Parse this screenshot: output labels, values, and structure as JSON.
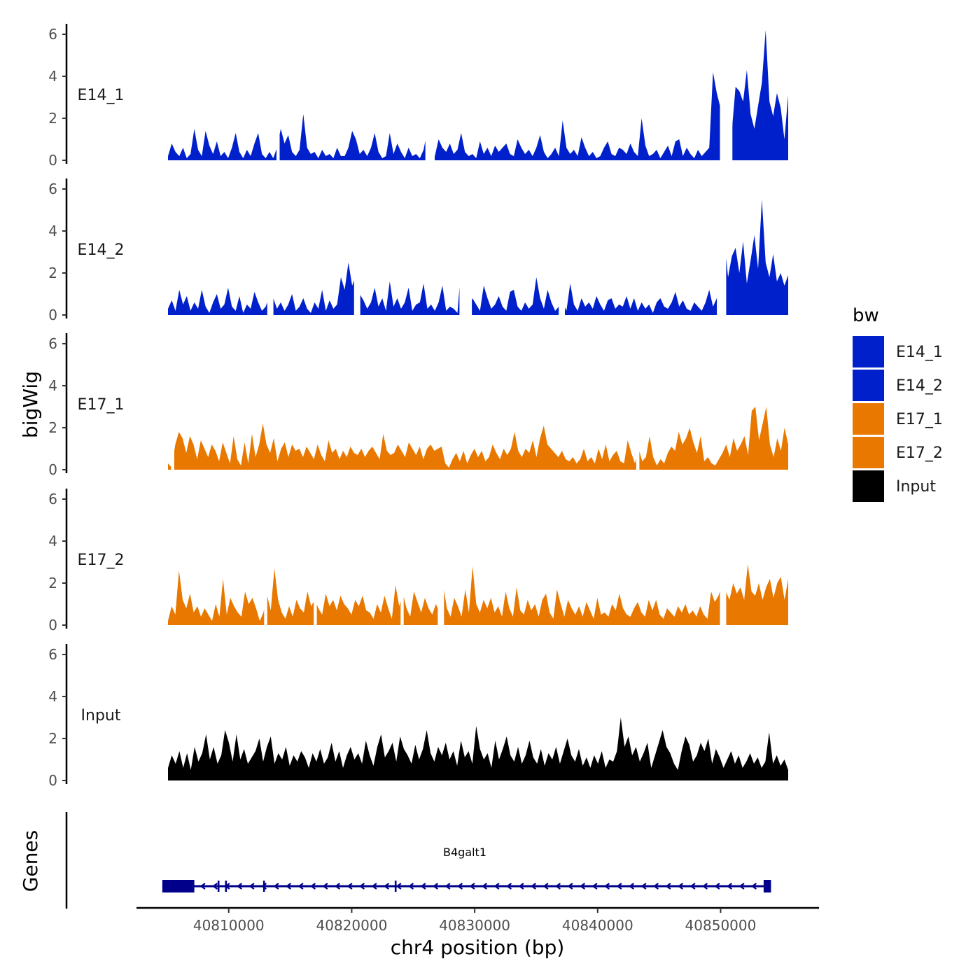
{
  "chart_data": {
    "type": "area",
    "ylabel": "bigWig",
    "xlabel": "chr4 position (bp)",
    "genes_label": "Genes",
    "xlim": [
      40802500,
      40858000
    ],
    "ylim": [
      0,
      6.5
    ],
    "yticks": [
      "0",
      "2",
      "4",
      "6"
    ],
    "xticks": [
      "40810000",
      "40820000",
      "40830000",
      "40840000",
      "40850000"
    ],
    "xtick_values": [
      40810000,
      40820000,
      40830000,
      40840000,
      40850000
    ],
    "region_start": 40804600,
    "region_end": 40855600,
    "legend": {
      "title": "bw",
      "items": [
        {
          "label": "E14_1",
          "color": "#0020cc"
        },
        {
          "label": "E14_2",
          "color": "#0020cc"
        },
        {
          "label": "E17_1",
          "color": "#e87800"
        },
        {
          "label": "E17_2",
          "color": "#e87800"
        },
        {
          "label": "Input",
          "color": "#000000"
        }
      ]
    },
    "series": [
      {
        "name": "E14_1",
        "color": "#0020cc",
        "gaps": [
          [
            0.175,
            0.18
          ],
          [
            0.31,
            0.31
          ],
          [
            0.415,
            0.43
          ],
          [
            0.89,
            0.91
          ]
        ],
        "values": [
          0.2,
          0.8,
          0.4,
          0.2,
          0.6,
          0.1,
          0.3,
          1.5,
          0.5,
          0.2,
          1.4,
          0.7,
          0.3,
          0.9,
          0.2,
          0.4,
          0.1,
          0.6,
          1.3,
          0.4,
          0.1,
          0.5,
          0.2,
          0.8,
          1.3,
          0.3,
          0.1,
          0.4,
          0.1,
          0.6,
          1.5,
          0.8,
          1.2,
          0.4,
          0.2,
          0.5,
          2.2,
          0.6,
          0.3,
          0.4,
          0.1,
          0.5,
          0.2,
          0.3,
          0.1,
          0.6,
          0.2,
          0.2,
          0.6,
          1.4,
          1.0,
          0.3,
          0.5,
          0.2,
          0.6,
          1.3,
          0.4,
          0.1,
          0.2,
          1.3,
          0.3,
          0.8,
          0.4,
          0.1,
          0.6,
          0.2,
          0.3,
          0.1,
          0.5,
          1.4,
          0.6,
          0.2,
          1.0,
          0.6,
          0.4,
          0.8,
          0.3,
          0.5,
          1.3,
          0.4,
          0.2,
          0.3,
          0.1,
          0.9,
          0.3,
          0.6,
          0.2,
          0.7,
          0.4,
          0.6,
          0.8,
          0.3,
          0.2,
          1.0,
          0.6,
          0.3,
          0.5,
          0.2,
          0.6,
          1.2,
          0.4,
          0.1,
          0.3,
          0.6,
          0.2,
          1.9,
          0.6,
          0.3,
          0.5,
          0.2,
          1.1,
          0.6,
          0.2,
          0.4,
          0.1,
          0.2,
          0.6,
          0.9,
          0.3,
          0.2,
          0.6,
          0.5,
          0.3,
          0.8,
          0.4,
          0.2,
          2.0,
          0.7,
          0.2,
          0.3,
          0.5,
          0.1,
          0.4,
          0.7,
          0.2,
          0.9,
          1.0,
          0.2,
          0.6,
          0.3,
          0.1,
          0.5,
          0.2,
          0.4,
          0.6,
          4.2,
          3.2,
          2.5,
          4.0,
          3.0,
          1.4,
          3.5,
          3.3,
          2.8,
          4.3,
          2.2,
          1.5,
          2.6,
          3.7,
          6.2,
          2.8,
          2.1,
          3.2,
          2.5,
          1.0,
          3.1
        ]
      },
      {
        "name": "E14_2",
        "color": "#0020cc",
        "gaps": [
          [
            0.16,
            0.17
          ],
          [
            0.3,
            0.31
          ],
          [
            0.47,
            0.49
          ],
          [
            0.63,
            0.64
          ],
          [
            0.885,
            0.9
          ]
        ],
        "values": [
          0.3,
          0.7,
          0.2,
          1.2,
          0.5,
          0.9,
          0.2,
          0.6,
          0.3,
          1.2,
          0.4,
          0.1,
          0.6,
          1.0,
          0.3,
          0.5,
          1.3,
          0.4,
          0.2,
          0.9,
          0.1,
          0.5,
          0.3,
          1.1,
          0.6,
          0.2,
          0.4,
          0.9,
          0.8,
          0.3,
          0.6,
          0.2,
          0.5,
          1.0,
          0.2,
          0.4,
          0.8,
          0.3,
          0.1,
          0.6,
          0.3,
          1.2,
          0.2,
          0.7,
          0.3,
          0.5,
          1.8,
          1.2,
          2.5,
          1.4,
          1.9,
          1.0,
          0.7,
          0.3,
          0.6,
          1.3,
          0.4,
          0.8,
          0.2,
          1.6,
          0.4,
          0.8,
          0.3,
          0.6,
          1.3,
          0.2,
          0.5,
          0.6,
          1.5,
          0.3,
          0.5,
          0.2,
          0.6,
          1.4,
          0.2,
          0.4,
          0.3,
          0.1,
          2.3,
          1.2,
          0.3,
          0.8,
          0.5,
          0.2,
          1.4,
          0.8,
          0.3,
          0.5,
          0.9,
          0.4,
          0.2,
          1.1,
          1.2,
          0.4,
          0.2,
          0.6,
          0.3,
          0.5,
          1.8,
          0.8,
          0.3,
          1.2,
          0.6,
          0.2,
          0.4,
          0.6,
          0.2,
          1.5,
          0.5,
          0.2,
          0.8,
          0.4,
          0.6,
          0.3,
          0.9,
          0.5,
          0.2,
          0.7,
          0.8,
          0.3,
          0.5,
          0.4,
          0.9,
          0.3,
          0.8,
          0.2,
          0.6,
          0.3,
          0.5,
          0.1,
          0.6,
          0.8,
          0.4,
          0.3,
          0.6,
          1.1,
          0.4,
          0.7,
          0.3,
          0.2,
          0.6,
          0.4,
          0.2,
          0.6,
          1.2,
          0.4,
          0.8,
          2.3,
          3.6,
          1.8,
          2.8,
          3.2,
          2.0,
          3.5,
          1.5,
          2.6,
          3.8,
          2.2,
          5.5,
          2.5,
          1.8,
          2.9,
          1.6,
          2.0,
          1.4,
          1.9
        ]
      },
      {
        "name": "E17_1",
        "color": "#e87800",
        "gaps": [
          [
            0.005,
            0.01
          ],
          [
            0.755,
            0.76
          ]
        ],
        "values": [
          0.3,
          0.1,
          1.2,
          1.8,
          1.5,
          0.8,
          1.6,
          1.2,
          0.5,
          1.4,
          1.0,
          0.6,
          1.2,
          0.9,
          0.4,
          1.3,
          0.8,
          0.3,
          1.6,
          0.5,
          0.2,
          1.3,
          0.3,
          1.7,
          0.6,
          1.2,
          2.2,
          1.2,
          0.8,
          1.5,
          0.4,
          1.0,
          1.3,
          0.6,
          1.2,
          0.9,
          1.0,
          0.6,
          1.1,
          0.8,
          0.5,
          1.2,
          0.7,
          0.4,
          1.4,
          0.8,
          1.0,
          0.5,
          0.9,
          0.6,
          1.1,
          0.8,
          0.7,
          1.0,
          0.6,
          0.9,
          1.1,
          0.8,
          0.5,
          1.7,
          0.9,
          0.7,
          0.8,
          1.2,
          0.9,
          0.6,
          1.3,
          1.0,
          0.7,
          1.1,
          0.5,
          1.0,
          1.2,
          0.9,
          1.0,
          1.1,
          0.3,
          0.1,
          0.5,
          0.8,
          0.4,
          0.9,
          0.3,
          0.7,
          1.0,
          0.6,
          0.9,
          0.4,
          0.6,
          1.2,
          0.8,
          0.5,
          1.0,
          0.7,
          1.0,
          1.8,
          0.9,
          0.6,
          1.0,
          0.8,
          1.4,
          0.6,
          1.5,
          2.1,
          1.2,
          1.0,
          0.8,
          0.6,
          0.9,
          0.5,
          0.4,
          0.6,
          0.3,
          0.5,
          1.0,
          0.4,
          0.6,
          0.3,
          1.0,
          0.5,
          1.2,
          0.4,
          0.7,
          0.9,
          0.4,
          0.3,
          1.4,
          0.8,
          0.3,
          1.0,
          0.4,
          0.6,
          1.6,
          0.6,
          0.2,
          0.5,
          0.3,
          0.8,
          1.1,
          0.9,
          1.8,
          1.2,
          1.5,
          2.0,
          1.3,
          0.8,
          1.6,
          0.4,
          0.6,
          0.3,
          0.2,
          0.5,
          0.8,
          1.2,
          0.6,
          1.5,
          0.9,
          1.2,
          1.6,
          0.7,
          2.8,
          3.0,
          1.4,
          2.2,
          3.0,
          1.2,
          0.6,
          1.5,
          0.9,
          2.0,
          1.2
        ]
      },
      {
        "name": "E17_2",
        "color": "#e87800",
        "gaps": [
          [
            0.155,
            0.16
          ],
          [
            0.235,
            0.24
          ],
          [
            0.375,
            0.38
          ],
          [
            0.435,
            0.445
          ],
          [
            0.89,
            0.9
          ]
        ],
        "values": [
          0.2,
          0.9,
          0.5,
          2.6,
          1.2,
          0.8,
          1.5,
          0.6,
          0.9,
          0.4,
          0.8,
          0.5,
          0.2,
          1.0,
          0.4,
          2.2,
          0.5,
          1.3,
          0.9,
          0.6,
          0.4,
          1.6,
          1.0,
          1.3,
          0.8,
          0.2,
          0.6,
          1.4,
          0.7,
          2.7,
          1.2,
          0.6,
          0.3,
          0.9,
          0.4,
          1.2,
          0.8,
          0.6,
          1.6,
          0.9,
          1.2,
          0.8,
          0.5,
          1.5,
          0.9,
          1.2,
          0.7,
          1.4,
          1.0,
          0.8,
          0.5,
          1.2,
          0.9,
          1.4,
          0.7,
          0.6,
          0.3,
          1.0,
          0.6,
          1.4,
          0.8,
          0.3,
          1.9,
          0.9,
          1.5,
          0.8,
          0.4,
          1.6,
          1.1,
          0.6,
          1.3,
          0.8,
          0.5,
          1.0,
          0.6,
          1.9,
          0.8,
          0.4,
          1.3,
          0.9,
          0.4,
          1.7,
          0.6,
          2.8,
          1.0,
          0.6,
          1.2,
          0.8,
          1.3,
          0.6,
          0.9,
          0.4,
          1.6,
          0.8,
          0.4,
          1.8,
          0.7,
          0.5,
          1.2,
          0.7,
          1.0,
          0.4,
          1.2,
          1.5,
          0.6,
          0.3,
          1.7,
          1.0,
          0.4,
          1.2,
          0.8,
          0.5,
          0.9,
          0.4,
          1.1,
          0.7,
          0.3,
          1.3,
          0.5,
          0.6,
          0.4,
          1.0,
          0.7,
          1.5,
          0.8,
          0.5,
          0.4,
          0.8,
          1.1,
          0.6,
          0.4,
          1.2,
          0.7,
          1.2,
          0.5,
          0.3,
          0.8,
          0.6,
          0.4,
          0.9,
          0.6,
          1.0,
          0.5,
          0.7,
          0.4,
          0.9,
          0.5,
          0.3,
          1.6,
          1.1,
          1.4,
          1.9,
          1.6,
          1.2,
          2.0,
          1.5,
          1.8,
          1.2,
          2.9,
          1.6,
          1.4,
          2.0,
          1.2,
          1.8,
          2.2,
          1.3,
          2.0,
          2.3,
          1.2,
          2.2
        ]
      },
      {
        "name": "Input",
        "color": "#000000",
        "gaps": [],
        "values": [
          0.6,
          1.2,
          0.8,
          1.4,
          0.6,
          1.3,
          0.5,
          1.6,
          0.9,
          1.3,
          2.2,
          1.0,
          1.6,
          0.8,
          1.2,
          2.4,
          1.8,
          0.9,
          2.2,
          1.0,
          1.5,
          0.8,
          1.1,
          1.4,
          2.0,
          0.9,
          1.6,
          2.1,
          0.8,
          1.3,
          1.0,
          1.6,
          0.7,
          1.2,
          0.9,
          1.4,
          1.1,
          0.6,
          1.3,
          0.9,
          1.5,
          0.8,
          1.1,
          1.8,
          0.9,
          1.4,
          0.6,
          1.2,
          1.6,
          1.0,
          1.3,
          0.8,
          1.9,
          1.2,
          0.7,
          1.6,
          2.2,
          1.1,
          1.4,
          1.8,
          0.9,
          2.1,
          1.5,
          1.2,
          0.8,
          1.7,
          1.0,
          1.5,
          2.4,
          1.3,
          0.9,
          1.6,
          1.2,
          1.8,
          1.0,
          1.4,
          0.7,
          1.9,
          1.1,
          1.4,
          0.8,
          2.6,
          1.5,
          1.0,
          1.3,
          0.6,
          1.9,
          1.0,
          1.5,
          2.1,
          1.2,
          0.9,
          1.6,
          0.8,
          1.2,
          1.9,
          1.1,
          0.8,
          1.5,
          0.7,
          1.3,
          1.0,
          1.6,
          0.8,
          1.4,
          2.0,
          1.2,
          0.9,
          1.5,
          0.7,
          1.1,
          0.6,
          1.2,
          0.8,
          1.4,
          0.6,
          1.0,
          0.9,
          1.4,
          3.0,
          1.6,
          2.1,
          1.2,
          1.6,
          0.9,
          1.3,
          1.8,
          0.6,
          1.2,
          1.8,
          2.4,
          1.6,
          1.3,
          0.8,
          0.5,
          1.4,
          2.1,
          1.7,
          0.9,
          1.2,
          1.8,
          1.4,
          2.0,
          0.8,
          1.5,
          1.1,
          0.6,
          1.0,
          1.4,
          0.8,
          1.2,
          0.6,
          0.9,
          1.3,
          0.8,
          1.1,
          0.6,
          0.9,
          2.3,
          0.8,
          1.2,
          0.7,
          1.0,
          0.5
        ]
      }
    ],
    "gene": {
      "name": "B4galt1",
      "strand": "-",
      "start": 40804600,
      "end": 40854100,
      "color": "#00008b",
      "exons": [
        [
          40804600,
          40807200
        ],
        [
          40809100,
          40809250
        ],
        [
          40809700,
          40809850
        ],
        [
          40812800,
          40812950
        ],
        [
          40823500,
          40823650
        ],
        [
          40853500,
          40854100
        ]
      ]
    }
  }
}
